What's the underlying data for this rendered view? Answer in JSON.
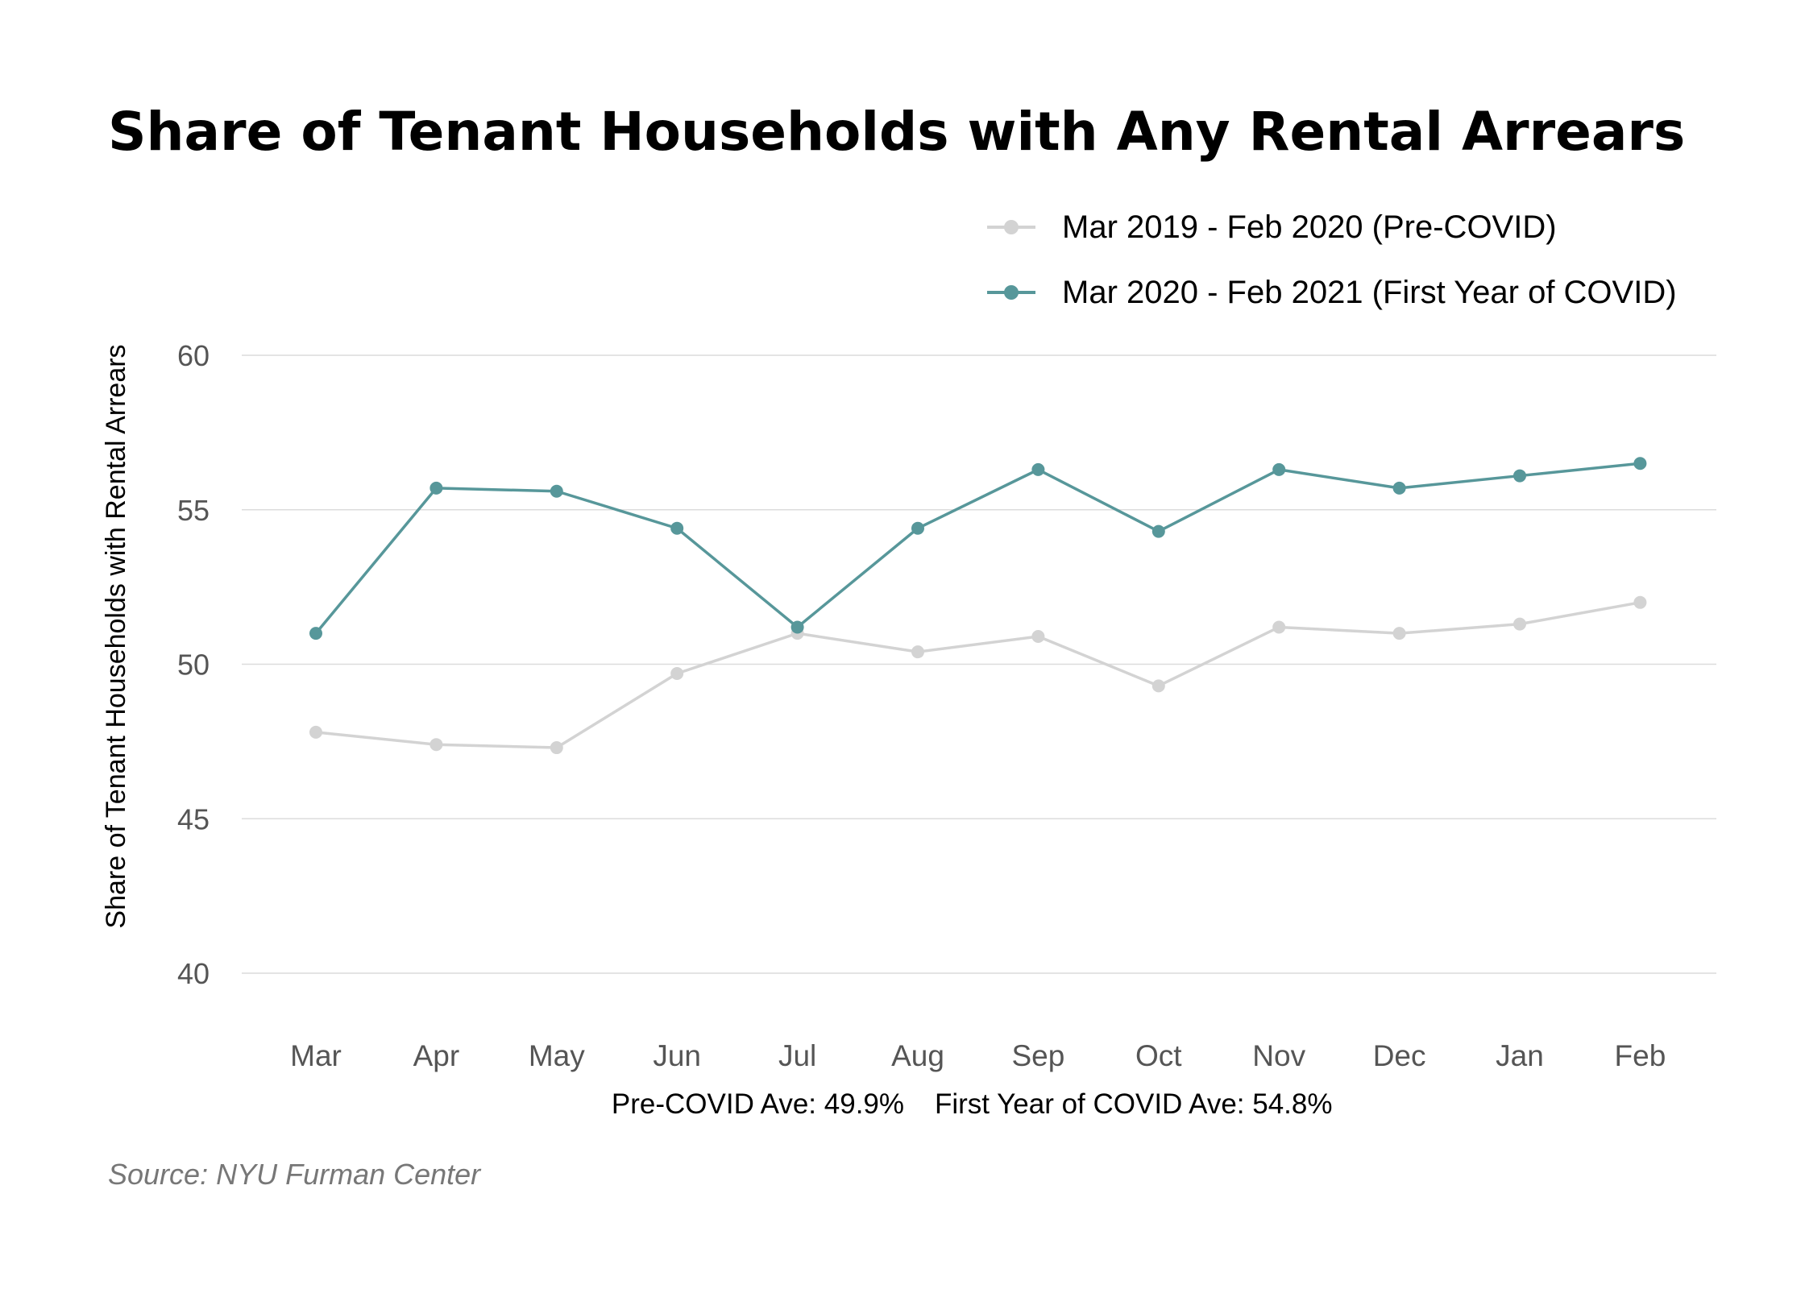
{
  "chart_data": {
    "type": "line",
    "title": "Share of Tenant Households with Any Rental Arrears",
    "ylabel": "Share of Tenant Households with Rental Arrears",
    "xlabel": "",
    "categories": [
      "Mar",
      "Apr",
      "May",
      "Jun",
      "Jul",
      "Aug",
      "Sep",
      "Oct",
      "Nov",
      "Dec",
      "Jan",
      "Feb"
    ],
    "ylim": [
      40,
      60
    ],
    "yticks": [
      "40",
      "45",
      "50",
      "55",
      "60"
    ],
    "grid": true,
    "legend_position": "top-right",
    "series": [
      {
        "name": "Mar 2019 - Feb 2020 (Pre-COVID)",
        "color": "#d3d3d3",
        "values": [
          47.8,
          47.4,
          47.3,
          49.7,
          51.0,
          50.4,
          50.9,
          49.3,
          51.2,
          51.0,
          51.3,
          52.0
        ]
      },
      {
        "name": "Mar 2020 - Feb 2021 (First Year of COVID)",
        "color": "#57979a",
        "values": [
          51.0,
          55.7,
          55.6,
          54.4,
          51.2,
          54.4,
          56.3,
          54.3,
          56.3,
          55.7,
          56.1,
          56.5
        ]
      }
    ],
    "annotations": {
      "pre_covid_average": "Pre-COVID Ave: 49.9%",
      "covid_average": "First Year of COVID Ave: 54.8%"
    },
    "source": "Source: NYU Furman Center"
  }
}
